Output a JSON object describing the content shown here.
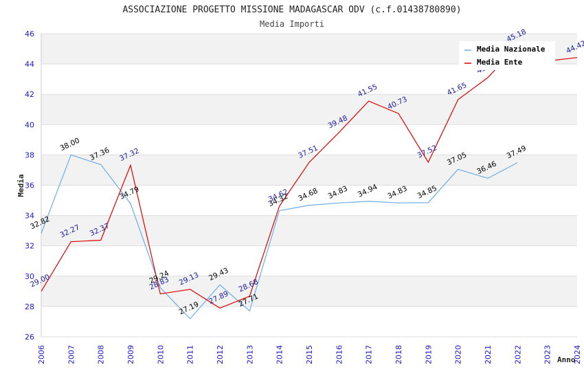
{
  "chart_data": {
    "type": "line",
    "title": "ASSOCIAZIONE PROGETTO MISSIONE MADAGASCAR ODV (c.f.01438780890)",
    "subtitle": "Media Importi",
    "xlabel": "Anno",
    "ylabel": "Media",
    "ylim": [
      26,
      46
    ],
    "yticks": [
      "26",
      "28",
      "30",
      "32",
      "34",
      "36",
      "38",
      "40",
      "42",
      "44",
      "46"
    ],
    "categories": [
      "2006",
      "2007",
      "2008",
      "2009",
      "2010",
      "2011",
      "2012",
      "2013",
      "2014",
      "2015",
      "2016",
      "2017",
      "2018",
      "2019",
      "2020",
      "2021",
      "2022",
      "2023",
      "2024"
    ],
    "legend_position": "top-right",
    "grid": true,
    "series": [
      {
        "name": "Media Nazionale",
        "color": "#6aaee6",
        "values": [
          32.82,
          38.0,
          37.36,
          34.79,
          29.24,
          27.19,
          29.43,
          27.71,
          34.32,
          34.68,
          34.83,
          34.94,
          34.83,
          34.85,
          37.05,
          36.46,
          37.49,
          null,
          null
        ],
        "labels": [
          "32.82",
          "38.00",
          "37.36",
          "34.79",
          "29.24",
          "27.19",
          "29.43",
          "27.71",
          "34.32",
          "34.68",
          "34.83",
          "34.94",
          "34.83",
          "34.85",
          "37.05",
          "36.46",
          "37.49",
          "",
          ""
        ]
      },
      {
        "name": "Media Ente",
        "color": "#e00000",
        "values": [
          29.0,
          32.27,
          32.37,
          37.32,
          28.83,
          29.13,
          27.89,
          28.68,
          34.62,
          37.51,
          39.48,
          41.55,
          40.73,
          37.52,
          41.65,
          43.1,
          45.18,
          44.2,
          44.42
        ],
        "labels": [
          "29.00",
          "32.27",
          "32.37",
          "37.32",
          "28.83",
          "29.13",
          "27.89",
          "28.68",
          "34.62",
          "37.51",
          "39.48",
          "41.55",
          "40.73",
          "37.52",
          "41.65",
          "43",
          "45.18",
          "",
          "44.42"
        ]
      }
    ]
  }
}
